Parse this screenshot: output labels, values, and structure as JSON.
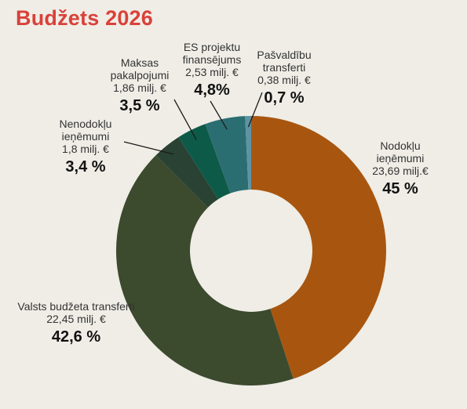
{
  "title": "Budžets 2026",
  "chart_data": {
    "type": "pie",
    "title": "Budžets 2026",
    "unit": "milj. €",
    "slices": [
      {
        "name": "Nodokļu ieņēmumi",
        "value": 23.69,
        "value_label": "23,69 milj.€",
        "percent": 45,
        "percent_label": "45 %",
        "color": "#a8560f"
      },
      {
        "name": "Valsts budžeta transferti",
        "value": 22.45,
        "value_label": "22,45 milj. €",
        "percent": 42.6,
        "percent_label": "42,6 %",
        "color": "#3c4a2e"
      },
      {
        "name": "Nenodokļu ieņēmumi",
        "value": 1.8,
        "value_label": "1,8 milj. €",
        "percent": 3.4,
        "percent_label": "3,4 %",
        "color": "#2a4234"
      },
      {
        "name": "Maksas pakalpojumi",
        "value": 1.86,
        "value_label": "1,86 milj. €",
        "percent": 3.5,
        "percent_label": "3,5 %",
        "color": "#0e5a48"
      },
      {
        "name": "ES projektu finansējums",
        "value": 2.53,
        "value_label": "2,53 milj. €",
        "percent": 4.8,
        "percent_label": "4,8%",
        "color": "#2b6e72"
      },
      {
        "name": "Pašvaldību transferti",
        "value": 0.38,
        "value_label": "0,38 milj. €",
        "percent": 0.7,
        "percent_label": "0,7 %",
        "color": "#5e93a3"
      }
    ]
  }
}
